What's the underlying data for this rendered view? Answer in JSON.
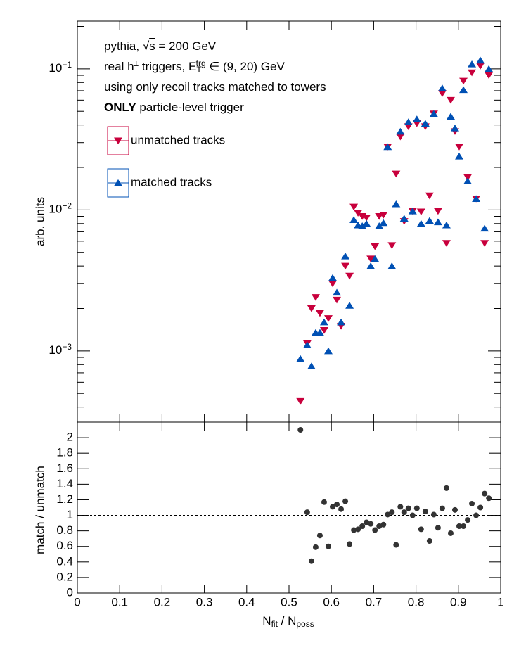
{
  "chart_data": [
    {
      "type": "scatter",
      "ylog": true,
      "ylabel": "arb. units",
      "annotations": [
        [
          {
            "text": "pythia, "
          },
          {
            "text": "√"
          },
          {
            "text": "s",
            "style": "over"
          },
          {
            "text": " = 200 GeV"
          }
        ],
        [
          {
            "text": "real h"
          },
          {
            "text": "±",
            "style": "sup"
          },
          {
            "text": " triggers, E"
          },
          {
            "text": "T",
            "style": "sub"
          },
          {
            "text": "trg",
            "style": "sup"
          },
          {
            "text": " ∈ (9, 20) GeV"
          }
        ],
        [
          {
            "text": "using only recoil tracks matched to towers"
          }
        ],
        [
          {
            "text": "ONLY",
            "style": "bold"
          },
          {
            "text": " particle-level trigger"
          }
        ]
      ],
      "x": [
        0.527,
        0.543,
        0.553,
        0.563,
        0.573,
        0.583,
        0.593,
        0.603,
        0.613,
        0.623,
        0.633,
        0.643,
        0.653,
        0.663,
        0.673,
        0.683,
        0.693,
        0.703,
        0.713,
        0.723,
        0.733,
        0.743,
        0.753,
        0.763,
        0.772,
        0.782,
        0.792,
        0.802,
        0.812,
        0.822,
        0.832,
        0.842,
        0.852,
        0.862,
        0.872,
        0.882,
        0.892,
        0.902,
        0.912,
        0.922,
        0.932,
        0.942,
        0.952,
        0.962,
        0.972
      ],
      "series": [
        {
          "name": "unmatched tracks",
          "color": "#c8003c",
          "marker": "down",
          "values": [
            0.00044,
            0.00113,
            0.002,
            0.0024,
            0.00185,
            0.0014,
            0.0017,
            0.003,
            0.0023,
            0.0015,
            0.004,
            0.0034,
            0.0105,
            0.0095,
            0.009,
            0.0088,
            0.0045,
            0.0055,
            0.009,
            0.0092,
            0.028,
            0.0056,
            0.018,
            0.033,
            0.0083,
            0.039,
            0.0098,
            0.041,
            0.0097,
            0.039,
            0.0126,
            0.048,
            0.0098,
            0.067,
            0.0058,
            0.06,
            0.036,
            0.028,
            0.082,
            0.017,
            0.094,
            0.012,
            0.105,
            0.0058,
            0.09
          ]
        },
        {
          "name": "matched tracks",
          "color": "#0050b4",
          "marker": "up",
          "values": [
            0.00088,
            0.0011,
            0.00078,
            0.00135,
            0.00135,
            0.0016,
            0.001,
            0.0033,
            0.0026,
            0.0016,
            0.0047,
            0.0021,
            0.0085,
            0.0078,
            0.0077,
            0.008,
            0.004,
            0.0045,
            0.0077,
            0.0081,
            0.028,
            0.004,
            0.011,
            0.036,
            0.0087,
            0.042,
            0.0098,
            0.044,
            0.008,
            0.041,
            0.0084,
            0.048,
            0.0082,
            0.073,
            0.0078,
            0.046,
            0.038,
            0.024,
            0.071,
            0.016,
            0.108,
            0.012,
            0.115,
            0.0074,
            0.1
          ]
        }
      ],
      "xlim": [
        0,
        1
      ],
      "xticks": [
        0,
        0.1,
        0.2,
        0.3,
        0.4,
        0.5,
        0.6,
        0.7,
        0.8,
        0.9,
        1
      ],
      "ylim": [
        0.000313,
        0.218
      ],
      "yticks": [
        {
          "value": 0.001,
          "label": "10",
          "exp": "−3"
        },
        {
          "value": 0.01,
          "label": "10",
          "exp": "−2"
        },
        {
          "value": 0.1,
          "label": "10",
          "exp": "−1"
        }
      ],
      "yminorticks": [
        0.0004,
        0.0005,
        0.0006,
        0.0007,
        0.0008,
        0.0009,
        0.002,
        0.003,
        0.004,
        0.005,
        0.006,
        0.007,
        0.008,
        0.009,
        0.02,
        0.03,
        0.04,
        0.05,
        0.06,
        0.07,
        0.08,
        0.09,
        0.2
      ]
    },
    {
      "type": "scatter",
      "ylabel": "match / unmatch",
      "xlabel": [
        {
          "text": "N"
        },
        {
          "text": "fit",
          "style": "sub"
        },
        {
          "text": " / N"
        },
        {
          "text": "poss",
          "style": "sub"
        }
      ],
      "color": "#333333",
      "x": [
        0.527,
        0.543,
        0.553,
        0.563,
        0.573,
        0.583,
        0.593,
        0.603,
        0.613,
        0.623,
        0.633,
        0.643,
        0.653,
        0.663,
        0.673,
        0.683,
        0.693,
        0.703,
        0.713,
        0.723,
        0.733,
        0.743,
        0.753,
        0.763,
        0.772,
        0.782,
        0.792,
        0.802,
        0.812,
        0.822,
        0.832,
        0.842,
        0.852,
        0.862,
        0.872,
        0.882,
        0.892,
        0.902,
        0.912,
        0.922,
        0.932,
        0.942,
        0.952,
        0.962,
        0.972
      ],
      "values": [
        2.1,
        1.04,
        0.41,
        0.59,
        0.74,
        1.17,
        0.6,
        1.11,
        1.14,
        1.08,
        1.18,
        0.63,
        0.81,
        0.82,
        0.86,
        0.91,
        0.89,
        0.81,
        0.86,
        0.88,
        1.01,
        1.04,
        0.62,
        1.11,
        1.04,
        1.09,
        1.0,
        1.09,
        0.82,
        1.05,
        0.67,
        1.01,
        0.84,
        1.09,
        1.35,
        0.77,
        1.07,
        0.86,
        0.86,
        0.94,
        1.15,
        1.0,
        1.1,
        1.28,
        1.22
      ],
      "reference_line": 1,
      "xlim": [
        0,
        1
      ],
      "xticks": [
        0,
        0.1,
        0.2,
        0.3,
        0.4,
        0.5,
        0.6,
        0.7,
        0.8,
        0.9,
        1
      ],
      "ylim": [
        0,
        2.2
      ],
      "yticks": [
        0,
        0.2,
        0.4,
        0.6,
        0.8,
        1,
        1.2,
        1.4,
        1.6,
        1.8,
        2
      ]
    }
  ]
}
